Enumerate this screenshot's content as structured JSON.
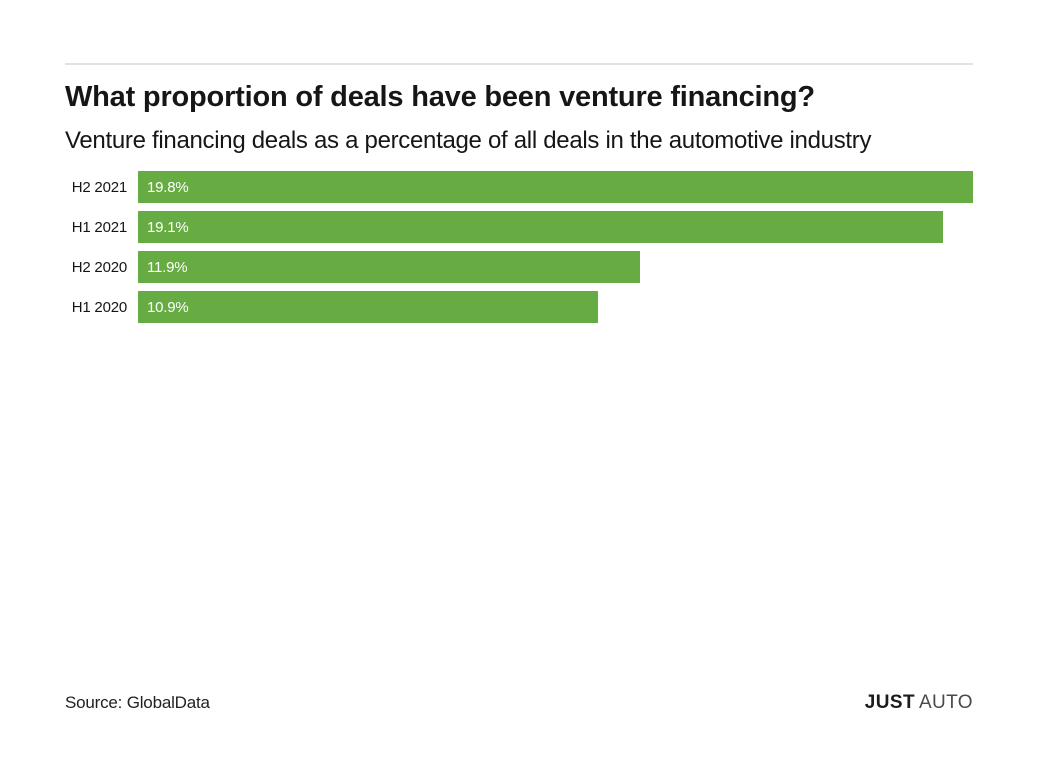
{
  "page": {
    "background": "#ffffff"
  },
  "header": {
    "title": "What proportion of deals have been venture financing?",
    "subtitle": "Venture financing deals as a percentage of all deals in the automotive industry"
  },
  "chart_data": {
    "type": "bar",
    "orientation": "horizontal",
    "categories": [
      "H2 2021",
      "H1 2021",
      "H2 2020",
      "H1 2020"
    ],
    "values": [
      19.8,
      19.1,
      11.9,
      10.9
    ],
    "value_labels": [
      "19.8%",
      "19.1%",
      "11.9%",
      "10.9%"
    ],
    "xlim": [
      0,
      19.8
    ],
    "bar_color": "#67ac43",
    "value_label_color": "#ffffff",
    "category_label_color": "#161616",
    "grid": false,
    "legend": false,
    "title": "What proportion of deals have been venture financing?",
    "subtitle": "Venture financing deals as a percentage of all deals in the automotive industry"
  },
  "footer": {
    "source": "Source: GlobalData",
    "brand_bold": "JUST",
    "brand_light": "AUTO"
  }
}
